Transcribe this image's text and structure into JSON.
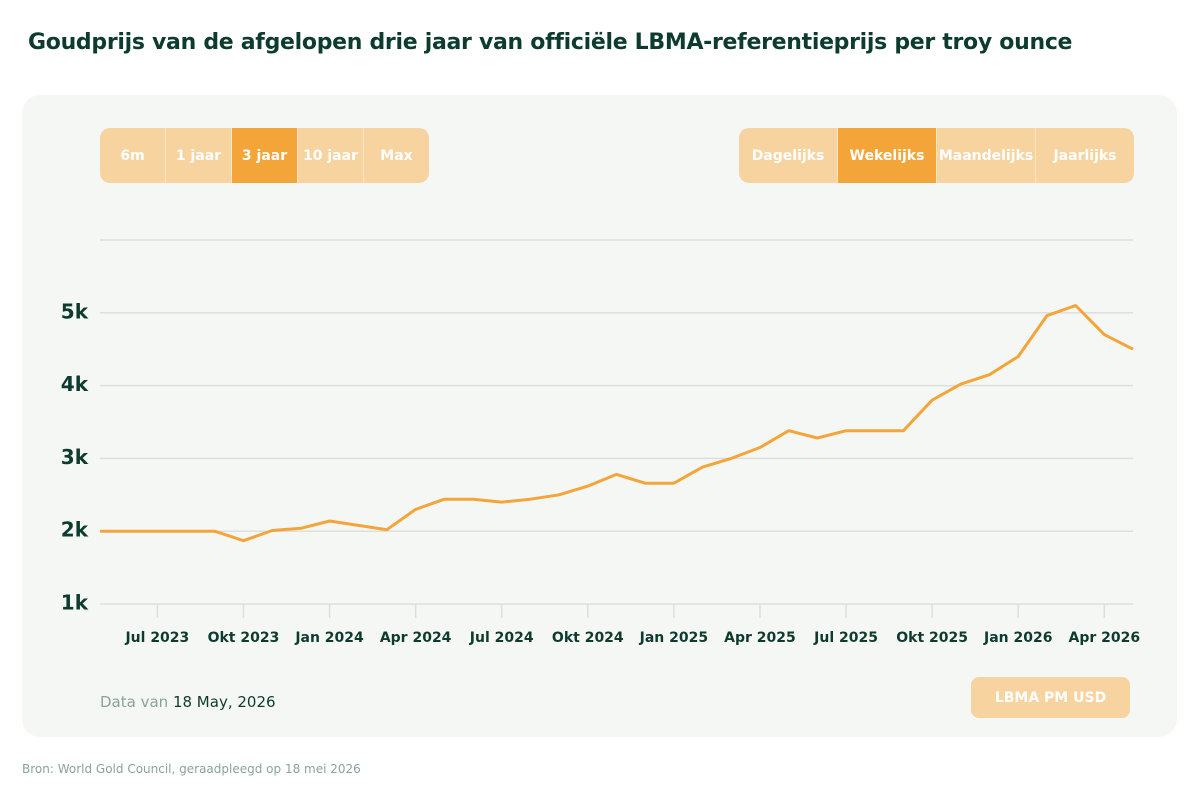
{
  "title": "Goudprijs van de afgelopen drie jaar van officiële LBMA-referentieprijs per troy ounce",
  "range_buttons": [
    "6m",
    "1 jaar",
    "3 jaar",
    "10 jaar",
    "Max"
  ],
  "range_active": 2,
  "interval_buttons": [
    "Dagelijks",
    "Wekelijks",
    "Maandelijks",
    "Jaarlijks"
  ],
  "interval_active": 1,
  "data_date_prefix": "Data van",
  "data_date": "18 May, 2026",
  "series_button": "LBMA PM USD",
  "source": "Bron: World Gold Council, geraadpleegd op 18 mei 2026",
  "chart_data": {
    "type": "line",
    "color": "#f4a53a",
    "x": [
      "2023-05",
      "2023-06",
      "2023-07",
      "2023-08",
      "2023-09",
      "2023-10",
      "2023-11",
      "2023-12",
      "2024-01",
      "2024-02",
      "2024-03",
      "2024-04",
      "2024-05",
      "2024-06",
      "2024-07",
      "2024-08",
      "2024-09",
      "2024-10",
      "2024-11",
      "2024-12",
      "2025-01",
      "2025-02",
      "2025-03",
      "2025-04",
      "2025-05",
      "2025-06",
      "2025-07",
      "2025-08",
      "2025-09",
      "2025-10",
      "2025-11",
      "2025-12",
      "2026-01",
      "2026-02",
      "2026-03",
      "2026-04",
      "2026-05"
    ],
    "values": [
      2000,
      2000,
      2000,
      2000,
      2000,
      1870,
      2010,
      2040,
      2140,
      2080,
      2020,
      2300,
      2440,
      2440,
      2400,
      2440,
      2500,
      2620,
      2780,
      2660,
      2660,
      2880,
      3000,
      3150,
      3380,
      3280,
      3380,
      3380,
      3380,
      3800,
      4020,
      4150,
      4400,
      4960,
      5100,
      4700,
      4500
    ],
    "xlim": [
      "2023-05",
      "2026-05"
    ],
    "xticks": [
      {
        "value": "2023-07",
        "label": "Jul 2023"
      },
      {
        "value": "2023-10",
        "label": "Okt 2023"
      },
      {
        "value": "2024-01",
        "label": "Jan 2024"
      },
      {
        "value": "2024-04",
        "label": "Apr 2024"
      },
      {
        "value": "2024-07",
        "label": "Jul 2024"
      },
      {
        "value": "2024-10",
        "label": "Okt 2024"
      },
      {
        "value": "2025-01",
        "label": "Jan 2025"
      },
      {
        "value": "2025-04",
        "label": "Apr 2025"
      },
      {
        "value": "2025-07",
        "label": "Jul 2025"
      },
      {
        "value": "2025-10",
        "label": "Okt 2025"
      },
      {
        "value": "2026-01",
        "label": "Jan 2026"
      },
      {
        "value": "2026-04",
        "label": "Apr 2026"
      }
    ],
    "ylim": [
      1000,
      6000
    ],
    "yticks": [
      {
        "value": 1000,
        "label": "1k"
      },
      {
        "value": 2000,
        "label": "2k"
      },
      {
        "value": 3000,
        "label": "3k"
      },
      {
        "value": 4000,
        "label": "4k"
      },
      {
        "value": 5000,
        "label": "5k"
      }
    ],
    "grid": true
  }
}
